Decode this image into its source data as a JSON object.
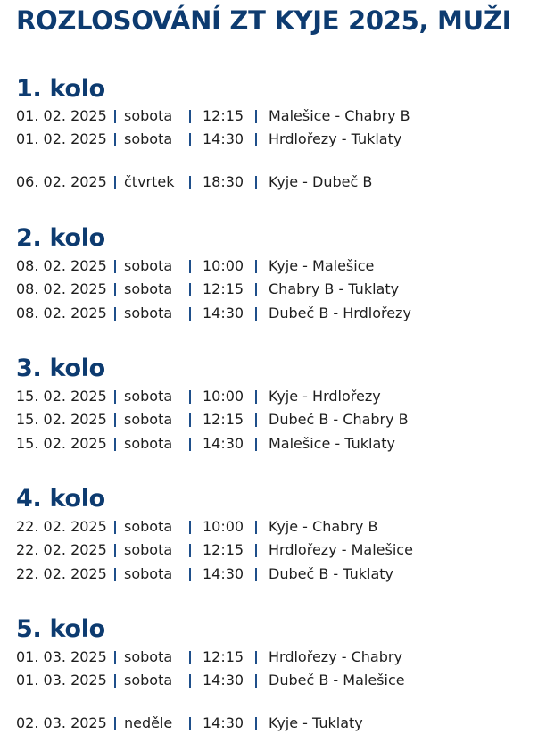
{
  "title": "ROZLOSOVÁNÍ ZT KYJE 2025, MUŽI",
  "colors": {
    "heading": "#0d3b70",
    "separator": "#1f4f8a",
    "text": "#1e1e1e"
  },
  "rounds": [
    {
      "label": "1. kolo",
      "matches": [
        {
          "date": "01. 02. 2025",
          "day": "sobota",
          "time": "12:15",
          "match": "Malešice - Chabry B"
        },
        {
          "date": "01. 02. 2025",
          "day": "sobota",
          "time": "14:30",
          "match": "Hrdlořezy - Tuklaty"
        },
        {
          "date": "06. 02. 2025",
          "day": "čtvrtek",
          "time": "18:30",
          "match": "Kyje - Dubeč B"
        }
      ]
    },
    {
      "label": "2. kolo",
      "matches": [
        {
          "date": "08. 02. 2025",
          "day": "sobota",
          "time": "10:00",
          "match": "Kyje - Malešice"
        },
        {
          "date": "08. 02. 2025",
          "day": "sobota",
          "time": "12:15",
          "match": "Chabry B - Tuklaty"
        },
        {
          "date": "08. 02. 2025",
          "day": "sobota",
          "time": "14:30",
          "match": "Dubeč B - Hrdlořezy"
        }
      ]
    },
    {
      "label": "3. kolo",
      "matches": [
        {
          "date": "15. 02. 2025",
          "day": "sobota",
          "time": "10:00",
          "match": "Kyje - Hrdlořezy"
        },
        {
          "date": "15. 02. 2025",
          "day": "sobota",
          "time": "12:15",
          "match": "Dubeč B - Chabry B"
        },
        {
          "date": "15. 02. 2025",
          "day": "sobota",
          "time": "14:30",
          "match": "Malešice - Tuklaty"
        }
      ]
    },
    {
      "label": "4. kolo",
      "matches": [
        {
          "date": "22. 02. 2025",
          "day": "sobota",
          "time": "10:00",
          "match": "Kyje - Chabry B"
        },
        {
          "date": "22. 02. 2025",
          "day": "sobota",
          "time": "12:15",
          "match": "Hrdlořezy - Malešice"
        },
        {
          "date": "22. 02. 2025",
          "day": "sobota",
          "time": "14:30",
          "match": "Dubeč B - Tuklaty"
        }
      ]
    },
    {
      "label": "5. kolo",
      "matches": [
        {
          "date": "01. 03. 2025",
          "day": "sobota",
          "time": "12:15",
          "match": "Hrdlořezy - Chabry"
        },
        {
          "date": "01. 03. 2025",
          "day": "sobota",
          "time": "14:30",
          "match": "Dubeč B - Malešice"
        },
        {
          "date": "02. 03. 2025",
          "day": "neděle",
          "time": "14:30",
          "match": "Kyje - Tuklaty"
        }
      ]
    }
  ]
}
